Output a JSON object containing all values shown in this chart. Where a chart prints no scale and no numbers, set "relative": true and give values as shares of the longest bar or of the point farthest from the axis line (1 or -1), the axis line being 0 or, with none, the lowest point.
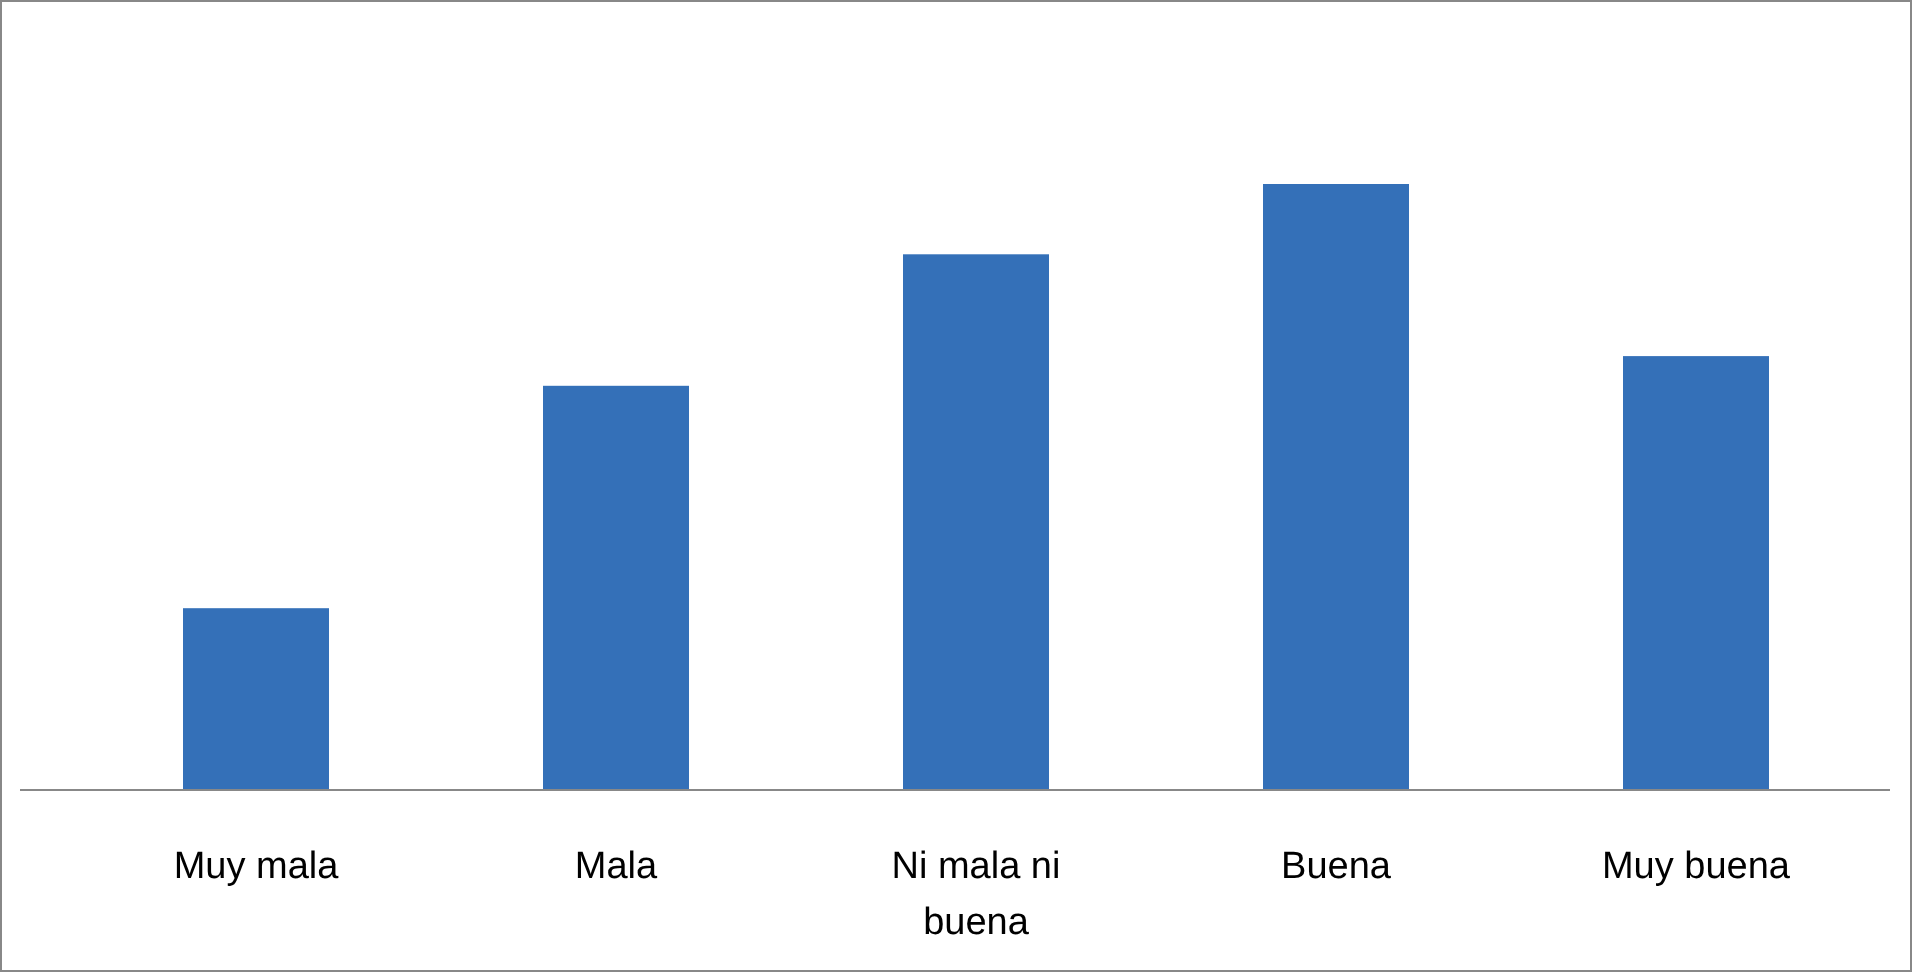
{
  "chart_data": {
    "type": "bar",
    "relative": true,
    "categories": [
      "Muy mala",
      "Mala",
      "Ni mala ni buena",
      "Buena",
      "Muy buena"
    ],
    "values": [
      0.3,
      0.667,
      0.884,
      1,
      0.716
    ],
    "color": "#3470b8"
  }
}
